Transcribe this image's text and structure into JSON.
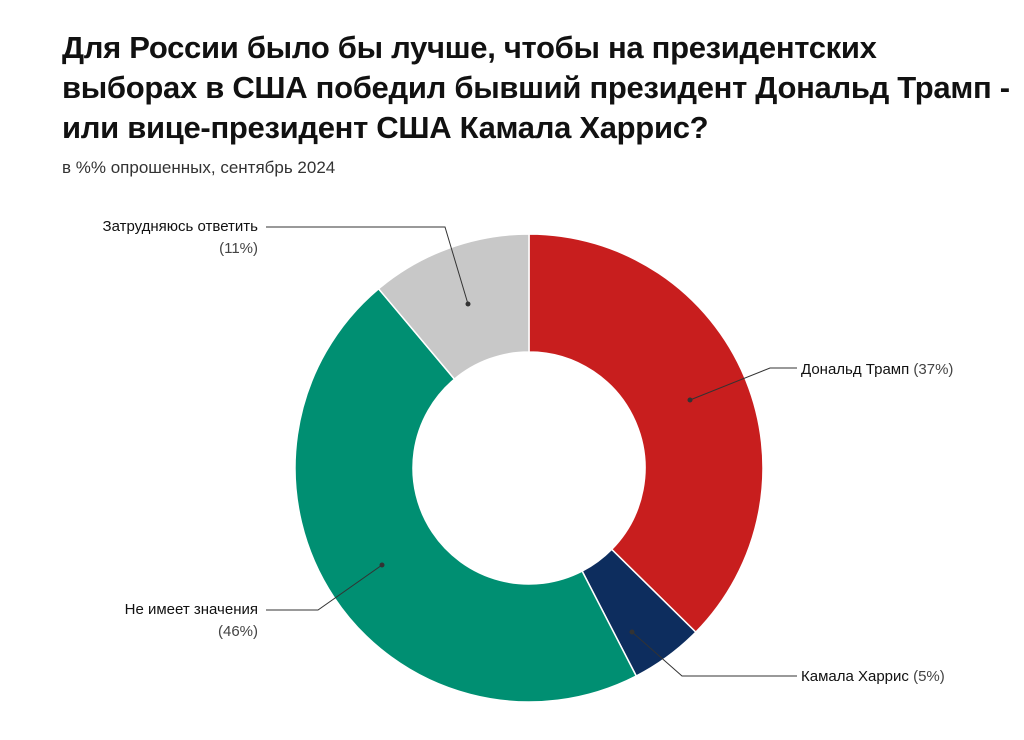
{
  "title": "Для России было бы лучше, чтобы на президентских выборах в США победил бывший президент Дональд Трамп - или вице-президент США Камала Харрис?",
  "subtitle": "в %% опрошенных, сентябрь 2024",
  "chart_data": {
    "type": "pie",
    "donut": true,
    "title": "Для России было бы лучше, чтобы на президентских выборах в США победил бывший президент Дональд Трамп - или вице-президент США Камала Харрис?",
    "subtitle": "в %% опрошенных, сентябрь 2024",
    "unit": "%",
    "slices": [
      {
        "label": "Дональд Трамп",
        "value": 37,
        "value_label": "(37%)",
        "color": "#c81e1e"
      },
      {
        "label": "Камала Харрис",
        "value": 5,
        "value_label": "(5%)",
        "color": "#0d2d5e"
      },
      {
        "label": "Не имеет значения",
        "value": 46,
        "value_label": "(46%)",
        "color": "#008f72"
      },
      {
        "label": "Затрудняюсь ответить",
        "value": 11,
        "value_label": "(11%)",
        "color": "#c8c8c8"
      }
    ],
    "legend": "none"
  }
}
